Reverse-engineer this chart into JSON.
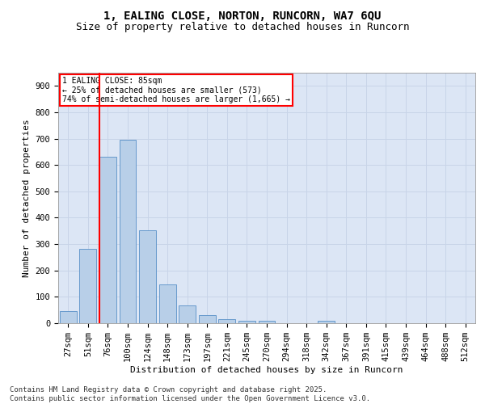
{
  "title": "1, EALING CLOSE, NORTON, RUNCORN, WA7 6QU",
  "subtitle": "Size of property relative to detached houses in Runcorn",
  "xlabel": "Distribution of detached houses by size in Runcorn",
  "ylabel": "Number of detached properties",
  "categories": [
    "27sqm",
    "51sqm",
    "76sqm",
    "100sqm",
    "124sqm",
    "148sqm",
    "173sqm",
    "197sqm",
    "221sqm",
    "245sqm",
    "270sqm",
    "294sqm",
    "318sqm",
    "342sqm",
    "367sqm",
    "391sqm",
    "415sqm",
    "439sqm",
    "464sqm",
    "488sqm",
    "512sqm"
  ],
  "values": [
    47,
    282,
    632,
    697,
    352,
    148,
    68,
    30,
    15,
    10,
    8,
    0,
    0,
    8,
    0,
    0,
    0,
    0,
    0,
    0,
    0
  ],
  "bar_color": "#b8cfe8",
  "bar_edge_color": "#6699cc",
  "vline_color": "red",
  "annotation_text": "1 EALING CLOSE: 85sqm\n← 25% of detached houses are smaller (573)\n74% of semi-detached houses are larger (1,665) →",
  "annotation_box_color": "white",
  "annotation_box_edge": "red",
  "ylim": [
    0,
    950
  ],
  "yticks": [
    0,
    100,
    200,
    300,
    400,
    500,
    600,
    700,
    800,
    900
  ],
  "grid_color": "#c8d4e8",
  "background_color": "#dce6f5",
  "footer": "Contains HM Land Registry data © Crown copyright and database right 2025.\nContains public sector information licensed under the Open Government Licence v3.0.",
  "title_fontsize": 10,
  "subtitle_fontsize": 9,
  "axis_label_fontsize": 8,
  "tick_fontsize": 7.5,
  "footer_fontsize": 6.5,
  "annotation_fontsize": 7
}
